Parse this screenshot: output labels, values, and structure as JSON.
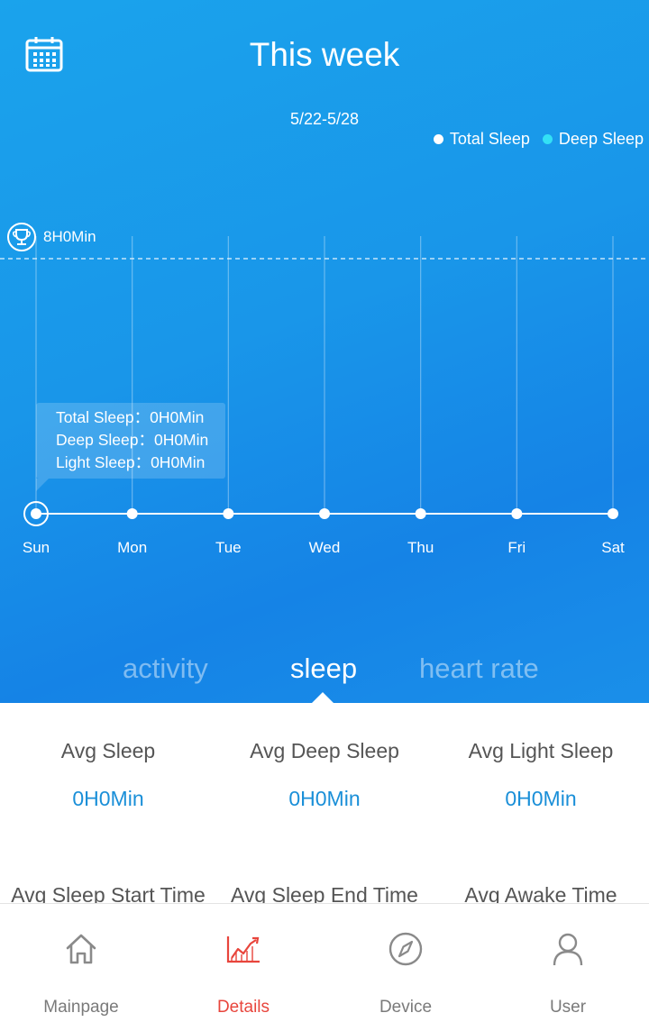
{
  "header": {
    "title": "This week",
    "date_range": "5/22-5/28",
    "calendar_icon": "calendar-icon"
  },
  "legend": [
    {
      "label": "Total Sleep",
      "color": "#ffffff"
    },
    {
      "label": "Deep Sleep",
      "color": "#33e0f5"
    }
  ],
  "goal": {
    "label": "8H0Min",
    "icon": "trophy-icon"
  },
  "tooltip": {
    "total": "Total Sleep：0H0Min",
    "deep": "Deep Sleep：0H0Min",
    "light": "Light Sleep：0H0Min"
  },
  "chart_data": {
    "type": "line",
    "categories": [
      "Sun",
      "Mon",
      "Tue",
      "Wed",
      "Thu",
      "Fri",
      "Sat"
    ],
    "series": [
      {
        "name": "Total Sleep",
        "values": [
          0,
          0,
          0,
          0,
          0,
          0,
          0
        ]
      },
      {
        "name": "Deep Sleep",
        "values": [
          0,
          0,
          0,
          0,
          0,
          0,
          0
        ]
      }
    ],
    "goal_line": 8,
    "ylim": [
      0,
      12
    ],
    "selected_index": 0
  },
  "tabs": [
    {
      "label": "activity",
      "active": false
    },
    {
      "label": "sleep",
      "active": true
    },
    {
      "label": "heart rate",
      "active": false
    }
  ],
  "stats": [
    {
      "label": "Avg Sleep",
      "value": "0H0Min"
    },
    {
      "label": "Avg Deep Sleep",
      "value": "0H0Min"
    },
    {
      "label": "Avg Light Sleep",
      "value": "0H0Min"
    },
    {
      "label": "Avg Sleep Start Time",
      "value": ""
    },
    {
      "label": "Avg Sleep End Time",
      "value": ""
    },
    {
      "label": "Avg Awake Time",
      "value": ""
    }
  ],
  "nav": [
    {
      "label": "Mainpage",
      "icon": "home-icon",
      "active": false
    },
    {
      "label": "Details",
      "icon": "chart-icon",
      "active": true
    },
    {
      "label": "Device",
      "icon": "compass-icon",
      "active": false
    },
    {
      "label": "User",
      "icon": "user-icon",
      "active": false
    }
  ],
  "colors": {
    "accent": "#1a8fd8",
    "nav_active": "#e8453c"
  }
}
